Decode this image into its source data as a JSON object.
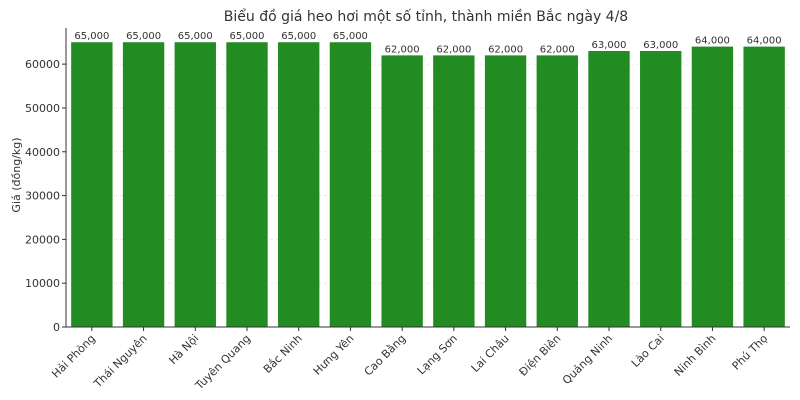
{
  "chart_data": {
    "type": "bar",
    "title": "Biểu đồ giá heo hơi một số tỉnh, thành miền Bắc ngày 4/8",
    "xlabel": "",
    "ylabel": "Giá (đồng/kg)",
    "categories": [
      "Hải Phòng",
      "Thái Nguyên",
      "Hà Nội",
      "Tuyên Quang",
      "Bắc Ninh",
      "Hưng Yên",
      "Cao Bằng",
      "Lạng Sơn",
      "Lai Châu",
      "Điện Biên",
      "Quảng Ninh",
      "Lào Cai",
      "Ninh Bình",
      "Phú Thọ"
    ],
    "values": [
      65000,
      65000,
      65000,
      65000,
      65000,
      65000,
      62000,
      62000,
      62000,
      62000,
      63000,
      63000,
      64000,
      64000
    ],
    "data_labels": [
      "65,000",
      "65,000",
      "65,000",
      "65,000",
      "65,000",
      "65,000",
      "62,000",
      "62,000",
      "62,000",
      "62,000",
      "63,000",
      "63,000",
      "64,000",
      "64,000"
    ],
    "ylim": [
      0,
      68250
    ],
    "yticks": [
      0,
      10000,
      20000,
      30000,
      40000,
      50000,
      60000
    ],
    "ytick_labels": [
      "0",
      "10000",
      "20000",
      "30000",
      "40000",
      "50000",
      "60000"
    ],
    "grid": true,
    "bar_color": "#228b22"
  }
}
